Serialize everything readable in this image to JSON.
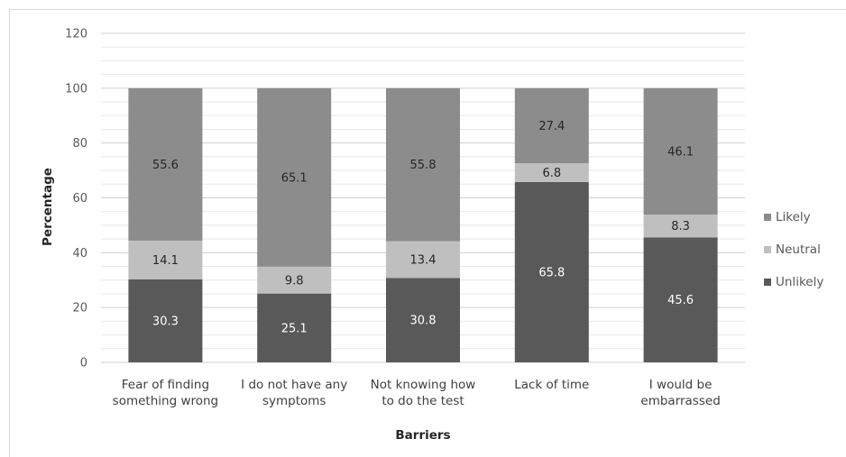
{
  "chart_data": {
    "type": "bar",
    "stacked": true,
    "title": "",
    "xlabel": "Barriers",
    "ylabel": "Percentage",
    "ylim": [
      0,
      120
    ],
    "ytick_step": 20,
    "grid": true,
    "legend_position": "right",
    "categories": [
      [
        "Fear of finding",
        "something wrong"
      ],
      [
        "I do not have any",
        "symptoms"
      ],
      [
        "Not knowing how",
        "to do the test"
      ],
      [
        "Lack of time"
      ],
      [
        "I would be",
        "embarrassed"
      ]
    ],
    "series": [
      {
        "name": "Unlikely",
        "values": [
          30.3,
          25.1,
          30.8,
          65.8,
          45.6
        ],
        "color": "#595959",
        "label_color": "#ffffff"
      },
      {
        "name": "Neutral",
        "values": [
          14.1,
          9.8,
          13.4,
          6.8,
          8.3
        ],
        "color": "#bfbfbf",
        "label_color": "#262626"
      },
      {
        "name": "Likely",
        "values": [
          55.6,
          65.1,
          55.8,
          27.4,
          46.1
        ],
        "color": "#8c8c8c",
        "label_color": "#262626"
      }
    ],
    "legend_order": [
      "Likely",
      "Neutral",
      "Unlikely"
    ]
  }
}
